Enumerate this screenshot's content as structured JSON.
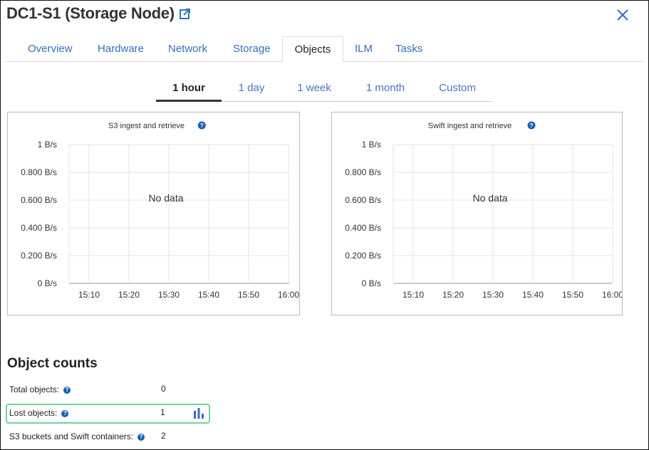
{
  "header": {
    "title": "DC1-S1 (Storage Node)",
    "external_link_icon": "external-link-icon",
    "close_icon": "close-icon"
  },
  "tabs": [
    {
      "label": "Overview"
    },
    {
      "label": "Hardware"
    },
    {
      "label": "Network"
    },
    {
      "label": "Storage"
    },
    {
      "label": "Objects",
      "active": true
    },
    {
      "label": "ILM"
    },
    {
      "label": "Tasks"
    }
  ],
  "time_ranges": [
    {
      "label": "1 hour",
      "active": true
    },
    {
      "label": "1 day"
    },
    {
      "label": "1 week"
    },
    {
      "label": "1 month"
    },
    {
      "label": "Custom"
    }
  ],
  "chart_data": [
    {
      "type": "line",
      "title": "S3 ingest and retrieve",
      "empty_message": "No data",
      "yticks": [
        "1 B/s",
        "0.800 B/s",
        "0.600 B/s",
        "0.400 B/s",
        "0.200 B/s",
        "0 B/s"
      ],
      "xticks": [
        "15:10",
        "15:20",
        "15:30",
        "15:40",
        "15:50",
        "16:00"
      ],
      "ylim": [
        0,
        1
      ],
      "grid": true,
      "series": []
    },
    {
      "type": "line",
      "title": "Swift ingest and retrieve",
      "empty_message": "No data",
      "yticks": [
        "1 B/s",
        "0.800 B/s",
        "0.600 B/s",
        "0.400 B/s",
        "0.200 B/s",
        "0 B/s"
      ],
      "xticks": [
        "15:10",
        "15:20",
        "15:30",
        "15:40",
        "15:50",
        "16:00"
      ],
      "ylim": [
        0,
        1
      ],
      "grid": true,
      "series": []
    }
  ],
  "object_counts": {
    "title": "Object counts",
    "rows": [
      {
        "label": "Total objects:",
        "value": "0"
      },
      {
        "label": "Lost objects:",
        "value": "1",
        "highlighted": true,
        "chart_icon": "bar-chart-icon"
      },
      {
        "label": "S3 buckets and Swift containers:",
        "value": "2"
      }
    ]
  },
  "colors": {
    "accent": "#3a6bbd",
    "help": "#1a5fb4",
    "highlight": "#6fd39b"
  }
}
